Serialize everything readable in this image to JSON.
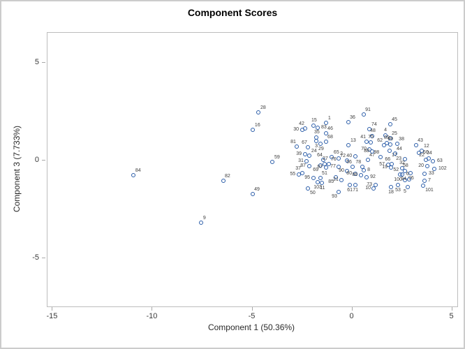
{
  "title": "Component Scores",
  "axes": {
    "x": {
      "label": "Component 1 (50.36%)",
      "ticks": [
        -15,
        -10,
        -5,
        0,
        5
      ]
    },
    "y": {
      "label": "Component 3 (7.733%)",
      "ticks": [
        -5,
        0,
        5
      ]
    }
  },
  "style": {
    "marker_color": "#2A5CA8",
    "frame_color": "#bdbdbd",
    "tick_color": "#a9a9a9",
    "text_color": "#2a2a2a",
    "background": "#ffffff"
  },
  "chart_data": {
    "type": "scatter",
    "title": "Component Scores",
    "xlabel": "Component 1 (50.36%)",
    "ylabel": "Component 3 (7.733%)",
    "xlim": [
      -15.26,
      5.26
    ],
    "ylim": [
      -7.46,
      6.54
    ],
    "grid": false,
    "legend": "none",
    "marker": "open-circle",
    "points": [
      {
        "label": "84",
        "x": -10.93,
        "y": -0.75,
        "lp": "ne"
      },
      {
        "label": "9",
        "x": -7.54,
        "y": -3.18,
        "lp": "ne"
      },
      {
        "label": "82",
        "x": -6.45,
        "y": -1.04,
        "lp": "ne"
      },
      {
        "label": "49",
        "x": -4.98,
        "y": -1.71,
        "lp": "ne"
      },
      {
        "label": "16",
        "x": -4.95,
        "y": 1.57,
        "lp": "ne"
      },
      {
        "label": "28",
        "x": -4.67,
        "y": 2.46,
        "lp": "ne"
      },
      {
        "label": "59",
        "x": -3.97,
        "y": -0.07,
        "lp": "ne"
      },
      {
        "label": "91",
        "x": 0.58,
        "y": 2.36,
        "lp": "ne"
      },
      {
        "label": "36",
        "x": -0.19,
        "y": 1.96,
        "lp": "ne"
      },
      {
        "label": "1",
        "x": -1.28,
        "y": 1.93,
        "lp": "ne"
      },
      {
        "label": "45",
        "x": 1.91,
        "y": 1.86,
        "lp": "ne"
      },
      {
        "label": "74",
        "x": 0.89,
        "y": 1.61,
        "lp": "ne"
      },
      {
        "label": "15",
        "x": -1.91,
        "y": 1.79,
        "lp": "n"
      },
      {
        "label": "83",
        "x": -1.73,
        "y": 1.68,
        "lp": "e"
      },
      {
        "label": "42",
        "x": -2.33,
        "y": 1.64,
        "lp": "nw"
      },
      {
        "label": "30",
        "x": -2.5,
        "y": 1.57,
        "lp": "w"
      },
      {
        "label": "46",
        "x": -1.31,
        "y": 1.39,
        "lp": "ne"
      },
      {
        "label": "35",
        "x": -1.77,
        "y": 1.18,
        "lp": "n"
      },
      {
        "label": "48",
        "x": 1.03,
        "y": 1.25,
        "lp": "n"
      },
      {
        "label": "4",
        "x": 1.66,
        "y": 1.29,
        "lp": "n"
      },
      {
        "label": "25",
        "x": 1.91,
        "y": 1.14,
        "lp": "ne"
      },
      {
        "label": "13",
        "x": -0.16,
        "y": 0.79,
        "lp": "ne"
      },
      {
        "label": "68",
        "x": -1.31,
        "y": 0.96,
        "lp": "ne"
      },
      {
        "label": "3",
        "x": -1.8,
        "y": 1.0,
        "lp": "s"
      },
      {
        "label": "29",
        "x": -1.56,
        "y": 0.86,
        "lp": "s"
      },
      {
        "label": "67",
        "x": -2.19,
        "y": 0.68,
        "lp": "nw"
      },
      {
        "label": "81",
        "x": -2.75,
        "y": 0.71,
        "lp": "nw"
      },
      {
        "label": "39",
        "x": -2.36,
        "y": 0.32,
        "lp": "w"
      },
      {
        "label": "24",
        "x": -2.12,
        "y": 0.25,
        "lp": "ne"
      },
      {
        "label": "43",
        "x": 3.2,
        "y": 0.79,
        "lp": "ne"
      },
      {
        "label": "38",
        "x": 2.26,
        "y": 0.86,
        "lp": "ne"
      },
      {
        "label": "41",
        "x": 0.75,
        "y": 0.96,
        "lp": "nw"
      },
      {
        "label": "75",
        "x": 0.93,
        "y": 0.93,
        "lp": "n"
      },
      {
        "label": "62",
        "x": 1.59,
        "y": 0.79,
        "lp": "nw"
      },
      {
        "label": "89",
        "x": 1.73,
        "y": 0.89,
        "lp": "n"
      },
      {
        "label": "99",
        "x": 1.91,
        "y": 0.82,
        "lp": "n"
      },
      {
        "label": "12",
        "x": 3.51,
        "y": 0.5,
        "lp": "ne"
      },
      {
        "label": "60",
        "x": 3.37,
        "y": 0.39,
        "lp": "e"
      },
      {
        "label": "65",
        "x": -1.0,
        "y": 0.18,
        "lp": "ne"
      },
      {
        "label": "2",
        "x": -0.68,
        "y": 0.11,
        "lp": "ne"
      },
      {
        "label": "64",
        "x": -1.42,
        "y": 0.04,
        "lp": "nw"
      },
      {
        "label": "31",
        "x": -2.26,
        "y": -0.04,
        "lp": "w"
      },
      {
        "label": "27",
        "x": -1.35,
        "y": -0.18,
        "lp": "n"
      },
      {
        "label": "76",
        "x": -1.14,
        "y": -0.18,
        "lp": "ne"
      },
      {
        "label": "72",
        "x": -0.26,
        "y": 0.0,
        "lp": "nw"
      },
      {
        "label": "77",
        "x": -0.65,
        "y": -0.32,
        "lp": "w"
      },
      {
        "label": "47",
        "x": 0.79,
        "y": 0.04,
        "lp": "ne"
      },
      {
        "label": "70",
        "x": 0.89,
        "y": 0.57,
        "lp": "w"
      },
      {
        "label": "88",
        "x": 1.03,
        "y": 0.46,
        "lp": "w"
      },
      {
        "label": "98",
        "x": 1.42,
        "y": 0.18,
        "lp": "nw"
      },
      {
        "label": "17",
        "x": 1.87,
        "y": 0.5,
        "lp": "se"
      },
      {
        "label": "44",
        "x": 2.15,
        "y": 0.36,
        "lp": "ne"
      },
      {
        "label": "23",
        "x": 2.64,
        "y": 0.07,
        "lp": "w"
      },
      {
        "label": "22",
        "x": 3.69,
        "y": 0.04,
        "lp": "nw"
      },
      {
        "label": "34",
        "x": 3.86,
        "y": 0.11,
        "lp": "n"
      },
      {
        "label": "63",
        "x": 4.07,
        "y": -0.04,
        "lp": "e"
      },
      {
        "label": "20",
        "x": 3.76,
        "y": -0.29,
        "lp": "w"
      },
      {
        "label": "57",
        "x": 1.8,
        "y": -0.21,
        "lp": "w"
      },
      {
        "label": "66",
        "x": 1.98,
        "y": -0.18,
        "lp": "nw"
      },
      {
        "label": "19",
        "x": 1.94,
        "y": -0.36,
        "lp": "w"
      },
      {
        "label": "32",
        "x": 2.5,
        "y": -0.39,
        "lp": "n"
      },
      {
        "label": "52",
        "x": 2.4,
        "y": -0.71,
        "lp": "nw"
      },
      {
        "label": "58",
        "x": 2.67,
        "y": -0.54,
        "lp": "n"
      },
      {
        "label": "96",
        "x": 2.95,
        "y": -0.64,
        "lp": "s"
      },
      {
        "label": "6",
        "x": 2.53,
        "y": -0.71,
        "lp": "e"
      },
      {
        "label": "102",
        "x": 4.14,
        "y": -0.43,
        "lp": "e"
      },
      {
        "label": "33",
        "x": 3.65,
        "y": -0.68,
        "lp": "e"
      },
      {
        "label": "7",
        "x": 3.62,
        "y": -1.04,
        "lp": "e"
      },
      {
        "label": "101",
        "x": 3.55,
        "y": -1.29,
        "lp": "se"
      },
      {
        "label": "5",
        "x": 2.81,
        "y": -1.36,
        "lp": "sw"
      },
      {
        "label": "100",
        "x": 2.67,
        "y": -1.0,
        "lp": "w"
      },
      {
        "label": "94",
        "x": 2.88,
        "y": -0.96,
        "lp": "w"
      },
      {
        "label": "53",
        "x": 2.29,
        "y": -1.25,
        "lp": "s"
      },
      {
        "label": "18",
        "x": 1.94,
        "y": -1.36,
        "lp": "s"
      },
      {
        "label": "73",
        "x": 1.17,
        "y": -1.25,
        "lp": "w"
      },
      {
        "label": "10",
        "x": 1.1,
        "y": -1.43,
        "lp": "w"
      },
      {
        "label": "55",
        "x": -2.67,
        "y": -0.71,
        "lp": "w"
      },
      {
        "label": "37",
        "x": -2.5,
        "y": -0.64,
        "lp": "nw"
      },
      {
        "label": "95",
        "x": -1.94,
        "y": -0.89,
        "lp": "w"
      },
      {
        "label": "51",
        "x": -1.59,
        "y": -0.89,
        "lp": "ne"
      },
      {
        "label": "103",
        "x": -1.73,
        "y": -1.11,
        "lp": "s"
      },
      {
        "label": "11",
        "x": -1.49,
        "y": -1.14,
        "lp": "s"
      },
      {
        "label": "85",
        "x": -0.82,
        "y": -0.86,
        "lp": "sw"
      },
      {
        "label": "21",
        "x": -0.51,
        "y": -1.0,
        "lp": "w"
      },
      {
        "label": "90",
        "x": -0.23,
        "y": -0.54,
        "lp": "w"
      },
      {
        "label": "80",
        "x": 0.16,
        "y": -0.68,
        "lp": "w"
      },
      {
        "label": "86",
        "x": 0.44,
        "y": -0.75,
        "lp": "w"
      },
      {
        "label": "56",
        "x": 0.05,
        "y": -0.32,
        "lp": "nw"
      },
      {
        "label": "78",
        "x": 0.51,
        "y": -0.32,
        "lp": "nw"
      },
      {
        "label": "8",
        "x": 0.58,
        "y": -0.5,
        "lp": "e"
      },
      {
        "label": "92",
        "x": 0.72,
        "y": -0.86,
        "lp": "e"
      },
      {
        "label": "87",
        "x": -2.15,
        "y": -0.29,
        "lp": "w"
      },
      {
        "label": "69",
        "x": -1.59,
        "y": -0.25,
        "lp": "sw"
      },
      {
        "label": "97",
        "x": -1.31,
        "y": -0.36,
        "lp": "w"
      },
      {
        "label": "61",
        "x": -0.12,
        "y": -1.25,
        "lp": "s"
      },
      {
        "label": "71",
        "x": 0.16,
        "y": -1.25,
        "lp": "s"
      },
      {
        "label": "93",
        "x": -0.65,
        "y": -1.61,
        "lp": "sw"
      },
      {
        "label": "50",
        "x": -2.22,
        "y": -1.43,
        "lp": "se"
      },
      {
        "label": "40",
        "x": 0.16,
        "y": 0.21,
        "lp": "w"
      }
    ]
  }
}
